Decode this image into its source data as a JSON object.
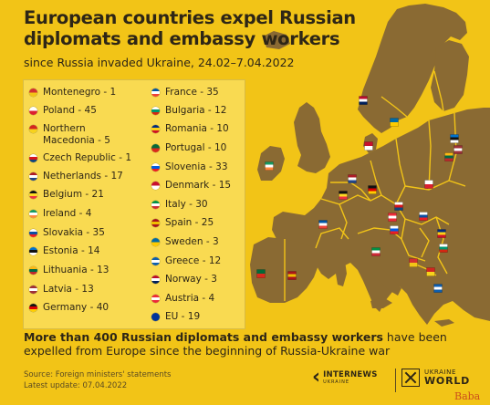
{
  "title": "European countries expel Russian diplomats and embassy workers",
  "subtitle": "since Russia invaded Ukraine, 24.02–7.04.2022",
  "chart_data": {
    "type": "map",
    "title": "European countries expel Russian diplomats and embassy workers",
    "subtitle": "since Russia invaded Ukraine, 24.02–7.04.2022",
    "unit": "expelled Russian diplomats and embassy workers",
    "categories": [
      "Montenegro",
      "Poland",
      "Northern Macedonia",
      "Czech Republic",
      "Netherlands",
      "Belgium",
      "Ireland",
      "Slovakia",
      "Estonia",
      "Lithuania",
      "Latvia",
      "Germany",
      "France",
      "Bulgaria",
      "Romania",
      "Portugal",
      "Slovenia",
      "Denmark",
      "Italy",
      "Spain",
      "Sweden",
      "Greece",
      "Norway",
      "Austria",
      "EU"
    ],
    "values": [
      1,
      45,
      5,
      1,
      17,
      21,
      4,
      35,
      14,
      13,
      13,
      40,
      35,
      12,
      10,
      10,
      33,
      15,
      30,
      25,
      3,
      12,
      3,
      4,
      19
    ],
    "legend": [
      {
        "label": "Montenegro - 1",
        "colors": [
          "#d32f2f",
          "#f2c417"
        ]
      },
      {
        "label": "Poland - 45",
        "colors": [
          "#ffffff",
          "#dc1f2f"
        ]
      },
      {
        "label": "Northern\nMacedonia - 5",
        "colors": [
          "#d2261f",
          "#f7d21c"
        ]
      },
      {
        "label": "Czech Republic - 1",
        "colors": [
          "#ffffff",
          "#d7141a",
          "#11457e"
        ]
      },
      {
        "label": "Netherlands - 17",
        "colors": [
          "#ae1c28",
          "#ffffff",
          "#21468b"
        ]
      },
      {
        "label": "Belgium - 21",
        "colors": [
          "#111111",
          "#fdda24",
          "#ef3340"
        ]
      },
      {
        "label": "Ireland - 4",
        "colors": [
          "#169b62",
          "#ffffff",
          "#ff883e"
        ]
      },
      {
        "label": "Slovakia - 35",
        "colors": [
          "#ffffff",
          "#0b4ea2",
          "#ee1c25"
        ]
      },
      {
        "label": "Estonia - 14",
        "colors": [
          "#0072ce",
          "#111111",
          "#ffffff"
        ]
      },
      {
        "label": "Lithuania - 13",
        "colors": [
          "#fdb913",
          "#006a44",
          "#c1272d"
        ]
      },
      {
        "label": "Latvia - 13",
        "colors": [
          "#9e3039",
          "#ffffff",
          "#9e3039"
        ]
      },
      {
        "label": "Germany - 40",
        "colors": [
          "#111111",
          "#dd0000",
          "#ffce00"
        ]
      },
      {
        "label": "France - 35",
        "colors": [
          "#0055a4",
          "#ffffff",
          "#ef4135"
        ]
      },
      {
        "label": "Bulgaria - 12",
        "colors": [
          "#ffffff",
          "#00966e",
          "#d62612"
        ]
      },
      {
        "label": "Romania - 10",
        "colors": [
          "#002b7f",
          "#fcd116",
          "#ce1126"
        ]
      },
      {
        "label": "Portugal - 10",
        "colors": [
          "#046a38",
          "#da291c"
        ]
      },
      {
        "label": "Slovenia - 33",
        "colors": [
          "#ffffff",
          "#005ce5",
          "#ed1c24"
        ]
      },
      {
        "label": "Denmark - 15",
        "colors": [
          "#c8102e",
          "#ffffff"
        ]
      },
      {
        "label": "Italy - 30",
        "colors": [
          "#009246",
          "#ffffff",
          "#ce2b37"
        ]
      },
      {
        "label": "Spain - 25",
        "colors": [
          "#aa151b",
          "#f1bf00",
          "#aa151b"
        ]
      },
      {
        "label": "Sweden - 3",
        "colors": [
          "#006aa7",
          "#fecc00"
        ]
      },
      {
        "label": "Greece - 12",
        "colors": [
          "#0d5eaf",
          "#ffffff",
          "#0d5eaf"
        ]
      },
      {
        "label": "Norway - 3",
        "colors": [
          "#ba0c2f",
          "#ffffff",
          "#00205b"
        ]
      },
      {
        "label": "Austria - 4",
        "colors": [
          "#ed2939",
          "#ffffff",
          "#ed2939"
        ]
      },
      {
        "label": "EU - 19",
        "colors": [
          "#003399",
          "#003399"
        ]
      }
    ]
  },
  "summary": {
    "bold": "More than 400 Russian diplomats and embassy workers",
    "rest": " have been expelled from Europe since the beginning of Russia-Ukraine war"
  },
  "source": "Source: Foreign ministers' statements",
  "update": "Latest update: 07.04.2022",
  "logos": {
    "internews_mark": "‹",
    "internews_name": "INTERNEWS",
    "internews_sub": "UKRAINE",
    "uw_line1": "UKRAINE",
    "uw_line2": "WORLD"
  },
  "watermark": "Baba",
  "colors": {
    "background": "#f2c417",
    "land": "#8a6a33",
    "country_border": "#f2c417",
    "text": "#2e2616"
  }
}
